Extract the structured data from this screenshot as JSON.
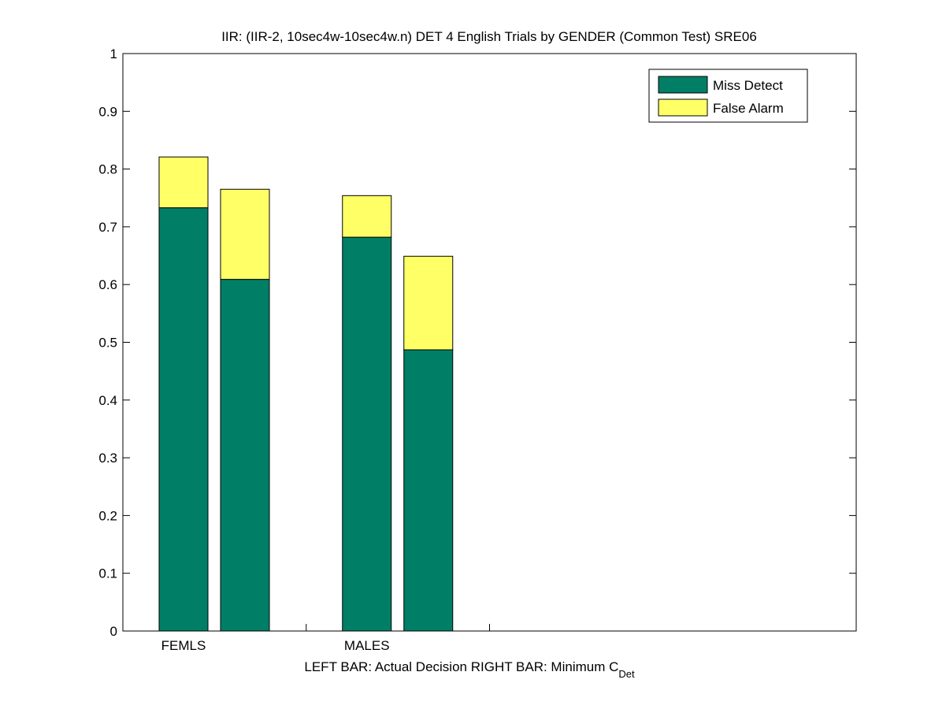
{
  "chart_data": {
    "type": "bar",
    "stacked": true,
    "title": "IIR: (IIR-2, 10sec4w-10sec4w.n) DET 4 English Trials by GENDER (Common Test) SRE06",
    "xlabel": "LEFT BAR: Actual Decision     RIGHT BAR: Minimum C",
    "xlabel_subscript": "Det",
    "ylabel": "",
    "ylim": [
      0,
      1
    ],
    "yticks": [
      "0",
      "0.1",
      "0.2",
      "0.3",
      "0.4",
      "0.5",
      "0.6",
      "0.7",
      "0.8",
      "0.9",
      "1"
    ],
    "groups": [
      {
        "label": "FEMLS",
        "bars": [
          {
            "miss": 0.733,
            "fa": 0.088
          },
          {
            "miss": 0.609,
            "fa": 0.156
          }
        ]
      },
      {
        "label": "MALES",
        "bars": [
          {
            "miss": 0.682,
            "fa": 0.072
          },
          {
            "miss": 0.487,
            "fa": 0.162
          }
        ]
      }
    ],
    "series": [
      {
        "name": "Miss Detect",
        "color": "#007f66"
      },
      {
        "name": "False Alarm",
        "color": "#ffff66"
      }
    ],
    "legend_position": "top-right",
    "grid": false
  }
}
